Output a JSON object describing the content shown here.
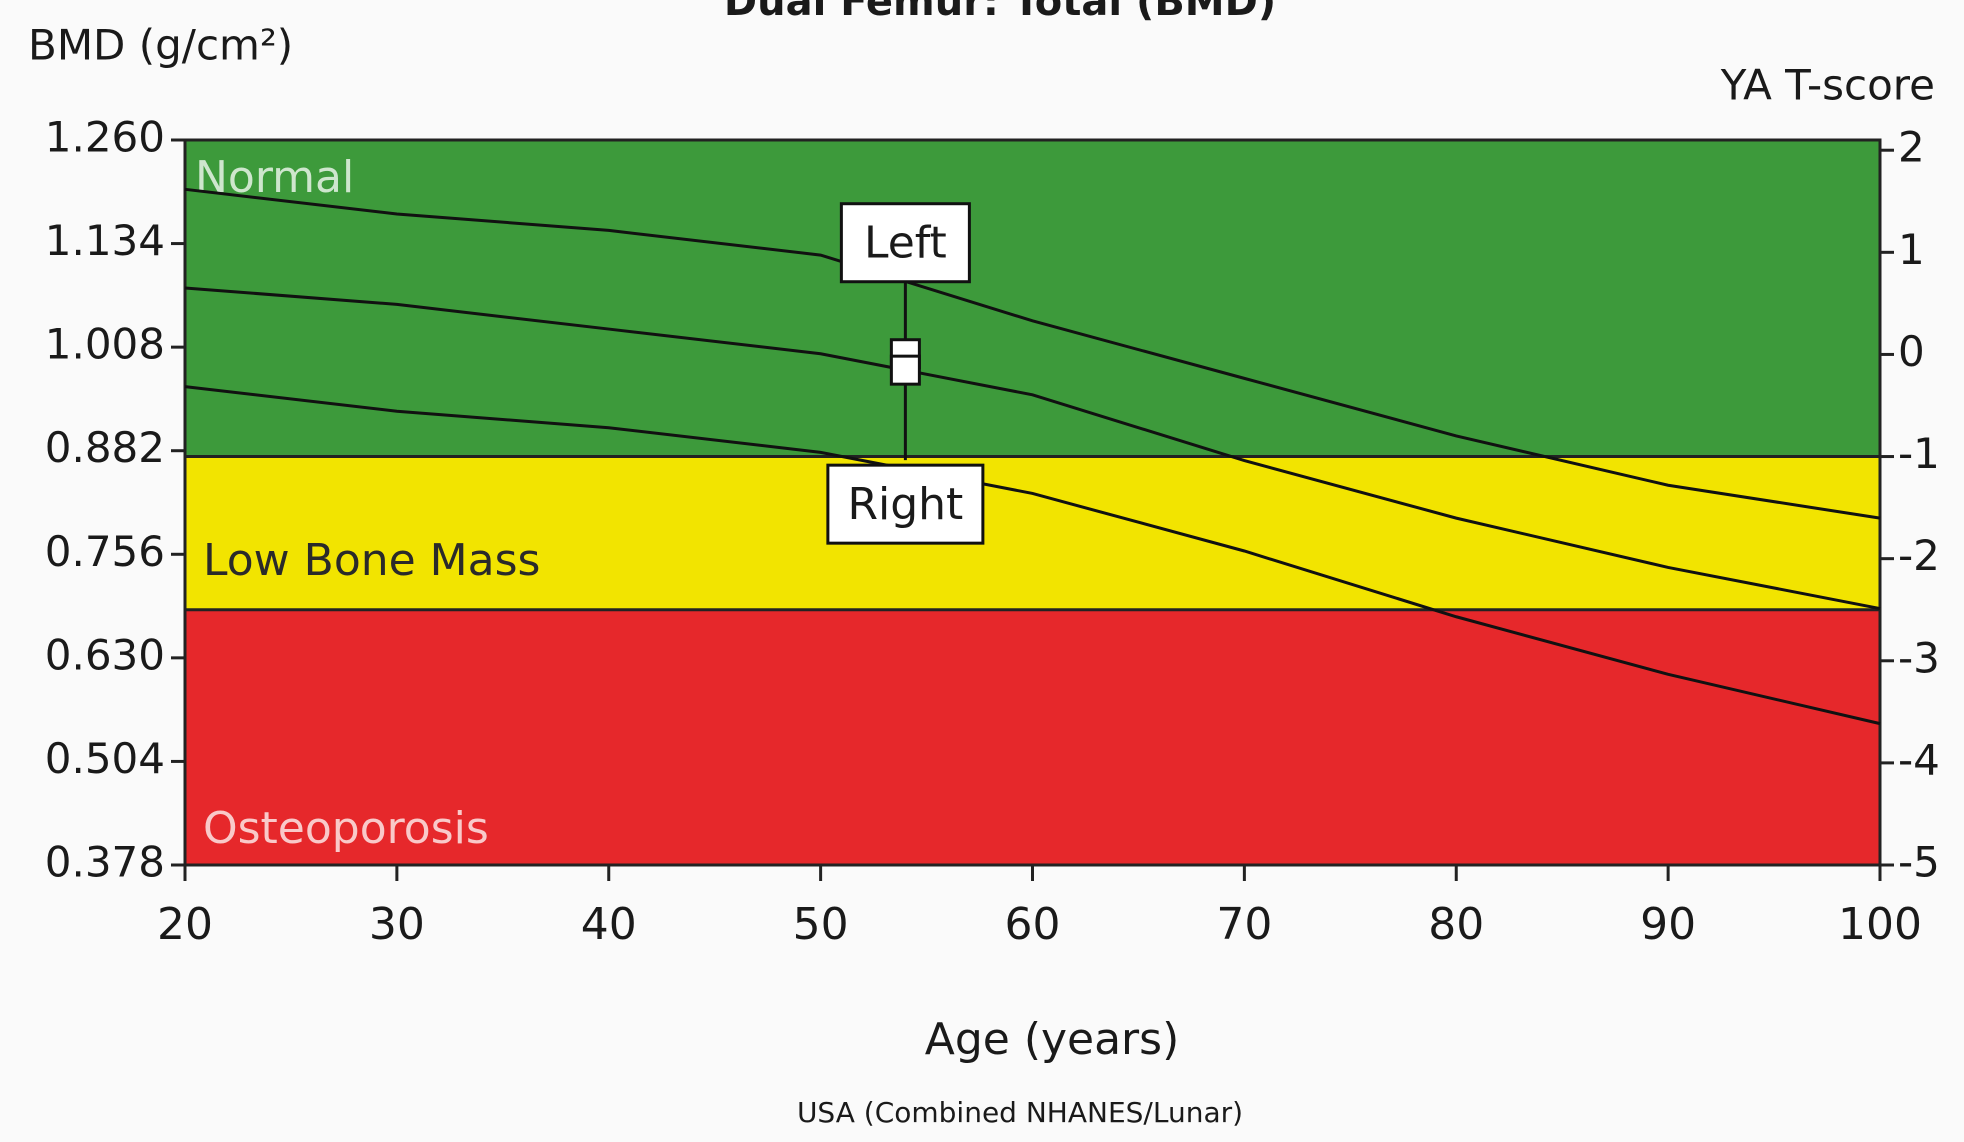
{
  "chart_data": {
    "type": "line",
    "title": "Dual Femur: Total (BMD)",
    "ylabel": "BMD (g/cm²)",
    "y2label": "YA T-score",
    "xlabel": "Age (years)",
    "source": "USA (Combined NHANES/Lunar)",
    "x": [
      20,
      30,
      40,
      50,
      60,
      70,
      80,
      90,
      100
    ],
    "series": [
      {
        "color": "#111111",
        "values": [
          1.2,
          1.17,
          1.15,
          1.12,
          1.04,
          0.97,
          0.9,
          0.84,
          0.8
        ]
      },
      {
        "color": "#111111",
        "values": [
          1.08,
          1.06,
          1.03,
          1.0,
          0.95,
          0.87,
          0.8,
          0.74,
          0.69
        ]
      },
      {
        "color": "#111111",
        "values": [
          0.96,
          0.93,
          0.91,
          0.88,
          0.83,
          0.76,
          0.68,
          0.61,
          0.55
        ]
      }
    ],
    "bands": [
      {
        "name": "Normal",
        "y2range": [
          -1,
          2.1
        ],
        "color": "#3d9a3b"
      },
      {
        "name": "Low Bone Mass",
        "y2range": [
          -2.5,
          -1
        ],
        "color": "#f2e400"
      },
      {
        "name": "Osteoporosis",
        "y2range": [
          -5,
          -2.5
        ],
        "color": "#e6282b"
      }
    ],
    "points": [
      {
        "label": "Left",
        "x": 54,
        "y": 1.0
      },
      {
        "label": "Right",
        "x": 54,
        "y": 0.98
      }
    ],
    "xlim": [
      20,
      100
    ],
    "xticks": [
      20,
      30,
      40,
      50,
      60,
      70,
      80,
      90,
      100
    ],
    "ylim": [
      0.378,
      1.26
    ],
    "yticks": [
      0.378,
      0.504,
      {
        "value": 0.63,
        "label": "0.630"
      },
      0.756,
      0.882,
      1.008,
      1.134,
      {
        "value": 1.26,
        "label": "1.260"
      }
    ],
    "y2lim": [
      -5,
      2.1
    ],
    "y2ticks": [
      -5,
      -4,
      -3,
      -2,
      -1,
      0,
      1,
      2
    ]
  }
}
